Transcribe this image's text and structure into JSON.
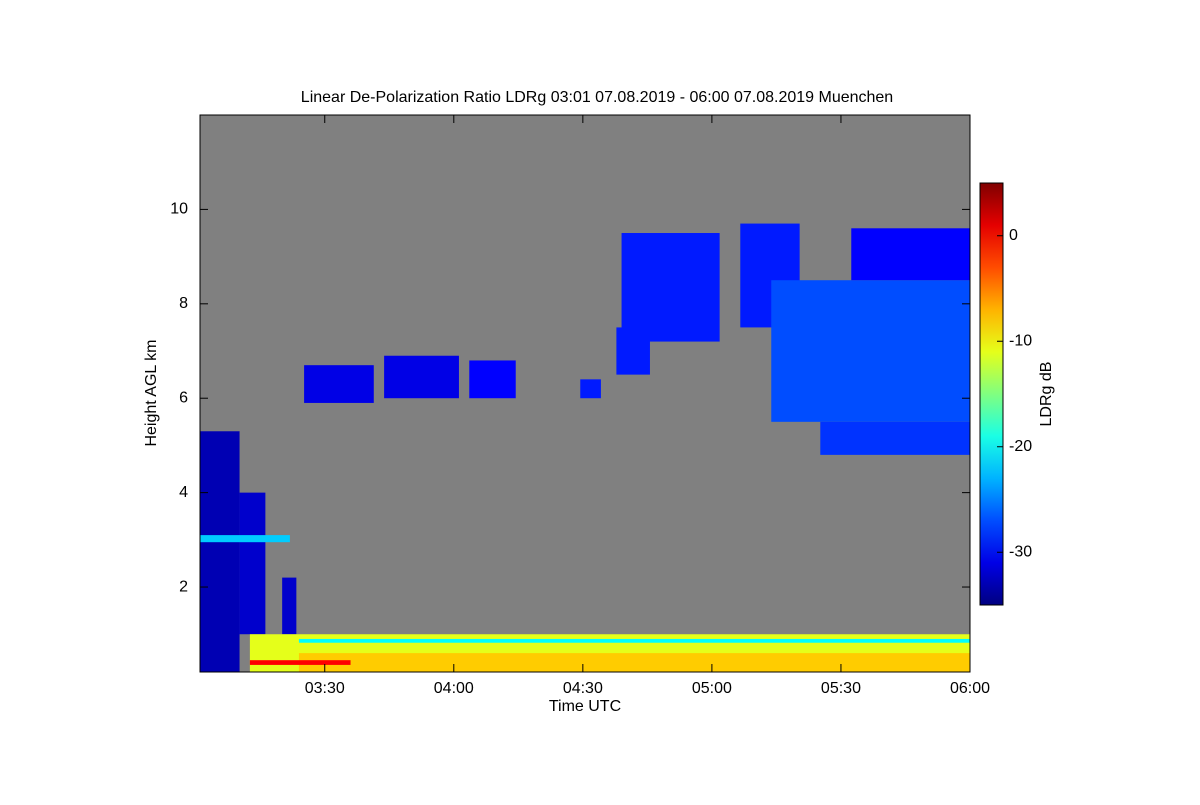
{
  "chart_data": {
    "type": "heatmap",
    "title": "Linear De-Polarization Ratio LDRg   03:01 07.08.2019 - 06:00 07.08.2019 Muenchen",
    "xlabel": "Time UTC",
    "ylabel": "Height AGL km",
    "colorbar_label": "LDRg dB",
    "xlim": [
      3.0167,
      6.0
    ],
    "xticks": [
      {
        "value": 3.5,
        "label": "03:30"
      },
      {
        "value": 4.0,
        "label": "04:00"
      },
      {
        "value": 4.5,
        "label": "04:30"
      },
      {
        "value": 5.0,
        "label": "05:00"
      },
      {
        "value": 5.5,
        "label": "05:30"
      },
      {
        "value": 6.0,
        "label": "06:00"
      }
    ],
    "ylim": [
      0.2,
      12
    ],
    "yticks": [
      2,
      4,
      6,
      8,
      10
    ],
    "clim": [
      -35,
      5
    ],
    "cticks": [
      -30,
      -20,
      -10,
      0
    ],
    "colormap": "jet",
    "background": "#808080",
    "cells": [
      {
        "t0": 3.017,
        "t1": 3.17,
        "h0": 0.2,
        "h1": 5.3,
        "ldr": -33
      },
      {
        "t0": 3.17,
        "t1": 3.27,
        "h0": 1.0,
        "h1": 4.0,
        "ldr": -32
      },
      {
        "t0": 3.335,
        "t1": 3.39,
        "h0": 1.0,
        "h1": 2.2,
        "ldr": -32
      },
      {
        "t0": 3.017,
        "t1": 3.365,
        "h0": 2.95,
        "h1": 3.1,
        "ldr": -22
      },
      {
        "t0": 3.42,
        "t1": 3.69,
        "h0": 5.9,
        "h1": 6.7,
        "ldr": -31
      },
      {
        "t0": 3.73,
        "t1": 4.02,
        "h0": 6.0,
        "h1": 6.9,
        "ldr": -31
      },
      {
        "t0": 4.06,
        "t1": 4.24,
        "h0": 6.0,
        "h1": 6.8,
        "ldr": -30
      },
      {
        "t0": 4.49,
        "t1": 4.57,
        "h0": 6.0,
        "h1": 6.4,
        "ldr": -29
      },
      {
        "t0": 4.63,
        "t1": 4.76,
        "h0": 6.5,
        "h1": 7.5,
        "ldr": -29
      },
      {
        "t0": 4.65,
        "t1": 5.03,
        "h0": 7.2,
        "h1": 9.5,
        "ldr": -29
      },
      {
        "t0": 5.11,
        "t1": 5.34,
        "h0": 7.5,
        "h1": 9.7,
        "ldr": -29
      },
      {
        "t0": 5.23,
        "t1": 6.0,
        "h0": 5.5,
        "h1": 8.5,
        "ldr": -27
      },
      {
        "t0": 5.42,
        "t1": 6.0,
        "h0": 4.8,
        "h1": 5.5,
        "ldr": -28
      },
      {
        "t0": 5.54,
        "t1": 6.0,
        "h0": 8.5,
        "h1": 9.6,
        "ldr": -30
      },
      {
        "t0": 3.21,
        "t1": 6.0,
        "h0": 0.2,
        "h1": 1.0,
        "ldr": -11
      },
      {
        "t0": 3.4,
        "t1": 6.0,
        "h0": 0.2,
        "h1": 0.6,
        "ldr": -8
      },
      {
        "t0": 3.4,
        "t1": 6.0,
        "h0": 0.82,
        "h1": 0.9,
        "ldr": -20
      },
      {
        "t0": 3.21,
        "t1": 3.6,
        "h0": 0.35,
        "h1": 0.45,
        "ldr": 0
      }
    ]
  }
}
